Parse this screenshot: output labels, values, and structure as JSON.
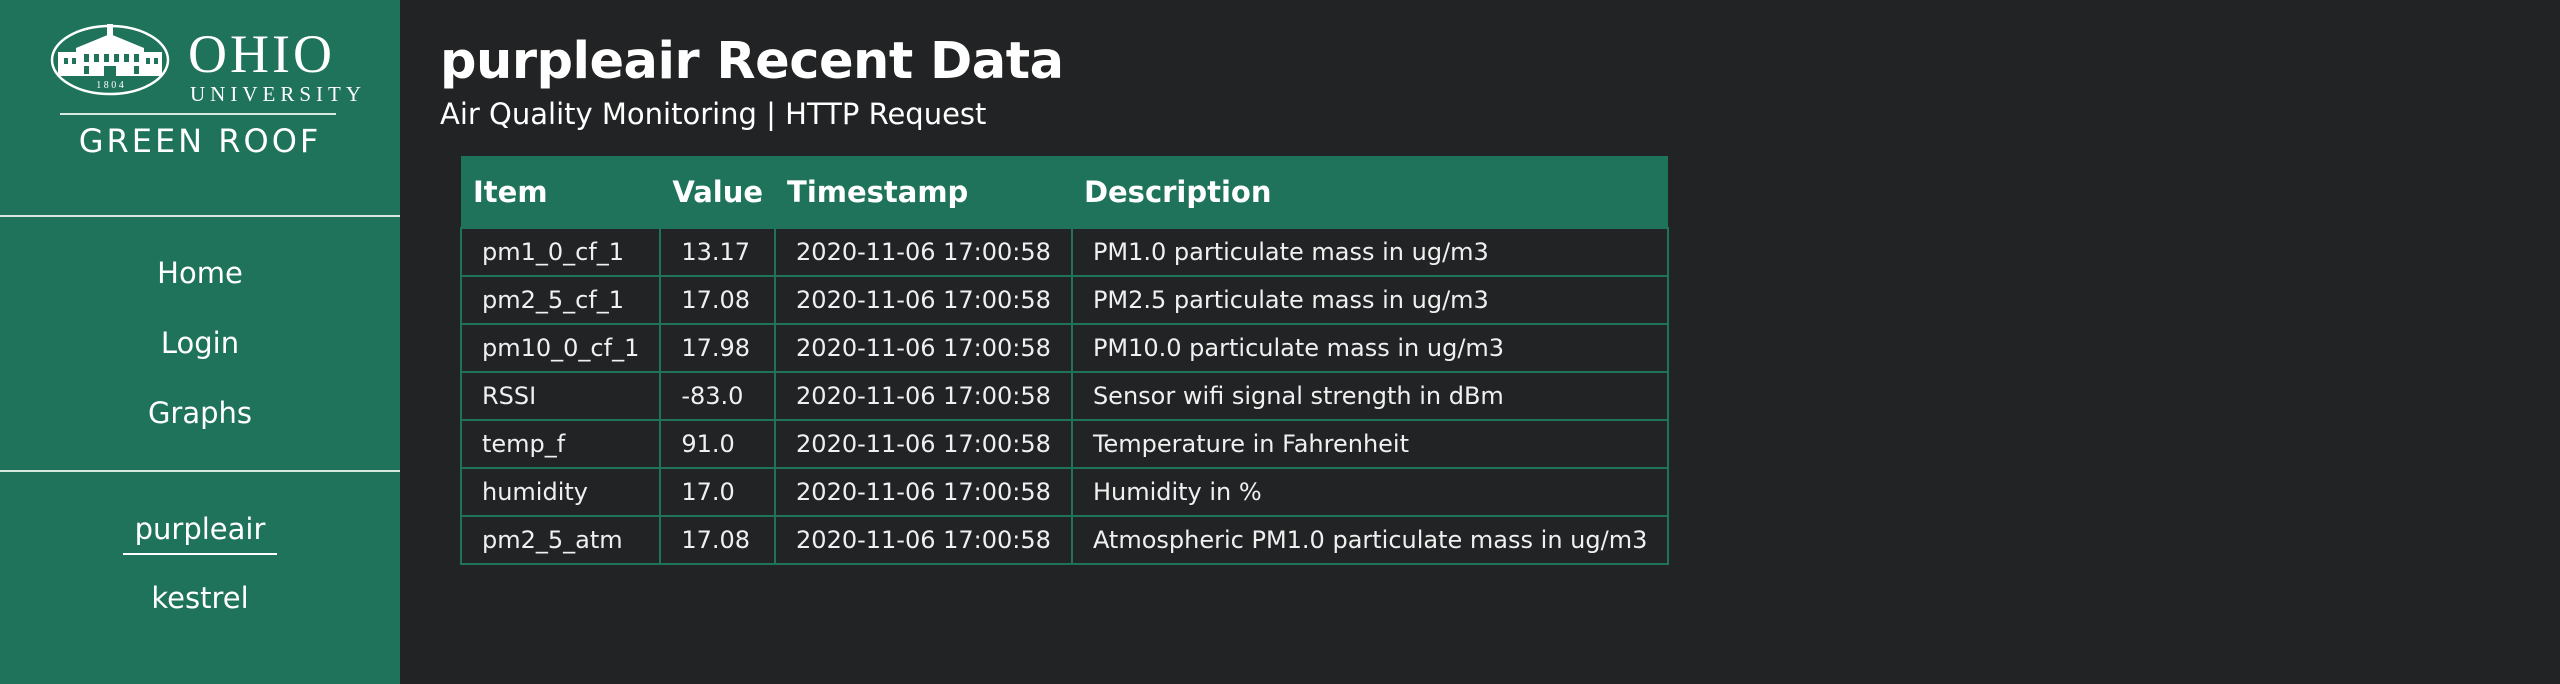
{
  "logo": {
    "wordmark": "OHIO",
    "university": "UNIVERSITY",
    "subtitle": "GREEN ROOF",
    "seal_year": "1 8 0 4"
  },
  "nav": {
    "items": [
      {
        "label": "Home"
      },
      {
        "label": "Login"
      },
      {
        "label": "Graphs"
      }
    ],
    "sensors": [
      {
        "label": "purpleair",
        "active": true
      },
      {
        "label": "kestrel",
        "active": false
      }
    ]
  },
  "page": {
    "title": "purpleair Recent Data",
    "subtitle": "Air Quality Monitoring | HTTP Request"
  },
  "table": {
    "headers": [
      "Item",
      "Value",
      "Timestamp",
      "Description"
    ],
    "rows": [
      [
        "pm1_0_cf_1",
        "13.17",
        "2020-11-06 17:00:58",
        "PM1.0 particulate mass in ug/m3"
      ],
      [
        "pm2_5_cf_1",
        "17.08",
        "2020-11-06 17:00:58",
        "PM2.5 particulate mass in ug/m3"
      ],
      [
        "pm10_0_cf_1",
        "17.98",
        "2020-11-06 17:00:58",
        "PM10.0 particulate mass in ug/m3"
      ],
      [
        "RSSI",
        "-83.0",
        "2020-11-06 17:00:58",
        "Sensor wifi signal strength in dBm"
      ],
      [
        "temp_f",
        "91.0",
        "2020-11-06 17:00:58",
        "Temperature in Fahrenheit"
      ],
      [
        "humidity",
        "17.0",
        "2020-11-06 17:00:58",
        "Humidity in %"
      ],
      [
        "pm2_5_atm",
        "17.08",
        "2020-11-06 17:00:58",
        "Atmospheric PM1.0 particulate mass in ug/m3"
      ]
    ]
  },
  "colors": {
    "brand_green": "#1e735a",
    "background": "#222324",
    "text": "#ffffff"
  }
}
